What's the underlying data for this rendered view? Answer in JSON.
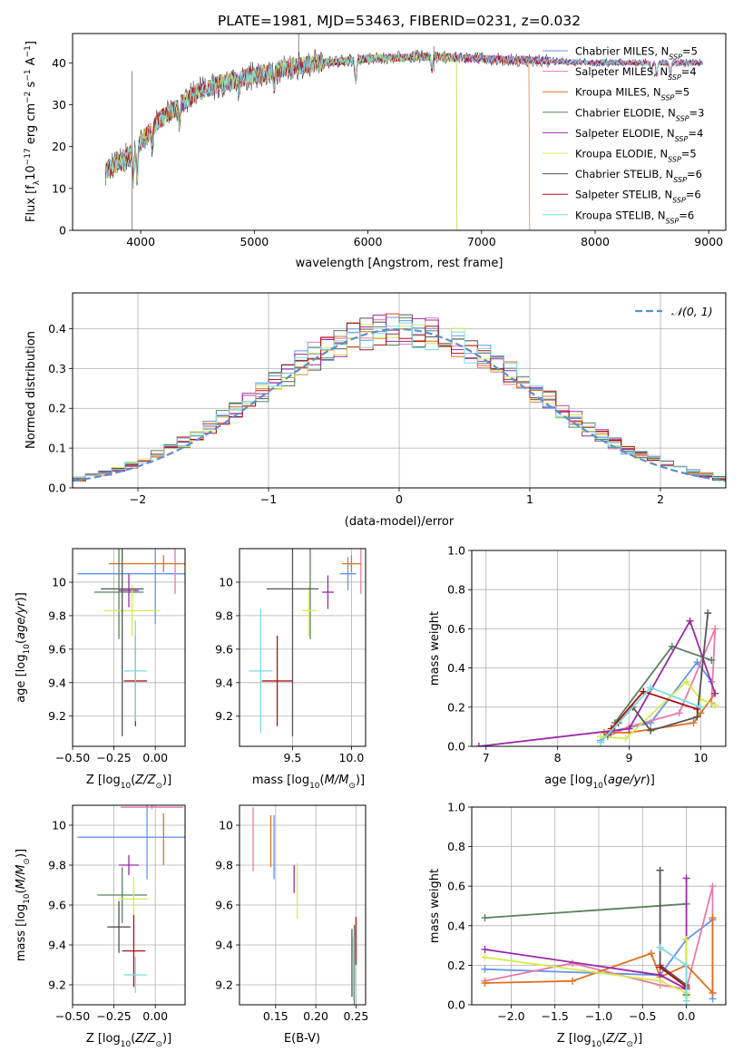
{
  "figure_title": "PLATE=1981, MJD=53463, FIBERID=0231, z=0.032",
  "colors": {
    "Chabrier MILES": "#6495ed",
    "Salpeter MILES": "#e87aa8",
    "Kroupa MILES": "#e07020",
    "Chabrier ELODIE": "#5a8060",
    "Salpeter ELODIE": "#9a2aa8",
    "Kroupa ELODIE": "#d4ec50",
    "Chabrier STELIB": "#555555",
    "Salpeter STELIB": "#b01010",
    "Kroupa STELIB": "#7adbe0"
  },
  "legend_main": [
    {
      "model": "Chabrier MILES",
      "nssp": "5"
    },
    {
      "model": "Salpeter MILES",
      "nssp": "4"
    },
    {
      "model": "Kroupa MILES",
      "nssp": "5"
    },
    {
      "model": "Chabrier ELODIE",
      "nssp": "3"
    },
    {
      "model": "Salpeter ELODIE",
      "nssp": "4"
    },
    {
      "model": "Kroupa ELODIE",
      "nssp": "5"
    },
    {
      "model": "Chabrier STELIB",
      "nssp": "6"
    },
    {
      "model": "Salpeter STELIB",
      "nssp": "6"
    },
    {
      "model": "Kroupa STELIB",
      "nssp": "6"
    }
  ],
  "chart_data": [
    {
      "id": "spectrum",
      "type": "line",
      "xlabel": "wavelength [Angstrom, rest frame]",
      "xlim": [
        3400,
        9150
      ],
      "ylim": [
        0,
        47
      ],
      "xticks": [
        4000,
        5000,
        6000,
        7000,
        8000,
        9000
      ],
      "yticks": [
        0,
        10,
        20,
        30,
        40
      ],
      "continuum": {
        "x": [
          3680,
          3850,
          4000,
          4150,
          4300,
          4500,
          4700,
          5000,
          5300,
          5600,
          6000,
          6500,
          7000,
          7500,
          8000,
          8500,
          8950
        ],
        "y": [
          14,
          17,
          21,
          26,
          29,
          33,
          35,
          37,
          39,
          40,
          41,
          41.5,
          41,
          40.5,
          40,
          40,
          40
        ]
      },
      "series_end_x": [
        8950,
        8950,
        7420,
        6780,
        8950,
        6780,
        8950,
        8950,
        8950
      ]
    },
    {
      "id": "residuals",
      "type": "step",
      "xlabel": "(data-model)/error",
      "ylabel": "Normed distribution",
      "xlim": [
        -2.5,
        2.5
      ],
      "ylim": [
        0,
        0.49
      ],
      "xticks": [
        -2,
        -1,
        0,
        1,
        2
      ],
      "xtick_labels": [
        "−2",
        "−1",
        "0",
        "1",
        "2"
      ],
      "yticks": [
        0,
        0.1,
        0.2,
        0.3,
        0.4
      ],
      "ytick_labels": [
        "0.0",
        "0.1",
        "0.2",
        "0.3",
        "0.4"
      ],
      "bin_width": 0.1,
      "reference_legend": "𝒩(0, 1)",
      "reference_sigma": 1
    },
    {
      "id": "age_vs_Z",
      "type": "errorbar",
      "xlabel": "Z [log10(Z/Z⊙)]",
      "ylabel": "age  [log10(age/yr)]",
      "xlim": [
        -0.5,
        0.18
      ],
      "ylim": [
        9.02,
        10.2
      ],
      "xticks": [
        -0.5,
        -0.25,
        0.0
      ],
      "xtick_labels": [
        "−0.50",
        "−0.25",
        "0.00"
      ],
      "yticks": [
        9.2,
        9.4,
        9.6,
        9.8,
        10.0
      ],
      "points": [
        {
          "x": -0.0,
          "xerr": 0.47,
          "y": 10.05,
          "yerr": 0.3
        },
        {
          "x": 0.12,
          "xerr": 0.0,
          "y": 10.11,
          "yerr": 0.18
        },
        {
          "x": 0.05,
          "xerr": 0.33,
          "y": 10.11,
          "yerr": 0.05
        },
        {
          "x": -0.22,
          "xerr": 0.15,
          "y": 9.94,
          "yerr": 0.28
        },
        {
          "x": -0.16,
          "xerr": 0.06,
          "y": 9.95,
          "yerr": 0.1
        },
        {
          "x": -0.14,
          "xerr": 0.17,
          "y": 9.83,
          "yerr": 0.15
        },
        {
          "x": -0.2,
          "xerr": 0.13,
          "y": 9.96,
          "yerr": 0.88
        },
        {
          "x": -0.12,
          "xerr": 0.07,
          "y": 9.41,
          "yerr": 0.27
        },
        {
          "x": -0.12,
          "xerr": 0.07,
          "y": 9.47,
          "yerr": 0.3
        }
      ]
    },
    {
      "id": "age_vs_mass",
      "type": "errorbar",
      "xlabel": "mass [log10(M/M⊙)]",
      "xlim": [
        9.05,
        10.12
      ],
      "ylim": [
        9.02,
        10.2
      ],
      "xticks": [
        9.5,
        10.0
      ],
      "xtick_labels": [
        "9.5",
        "10.0"
      ],
      "yticks": [
        9.2,
        9.4,
        9.6,
        9.8,
        10.0
      ],
      "points": [
        {
          "x": 9.97,
          "xerr": 0.07,
          "y": 10.05,
          "yerr": 0.1
        },
        {
          "x": 10.08,
          "xerr": 0.0,
          "y": 10.11,
          "yerr": 0.18
        },
        {
          "x": 10.0,
          "xerr": 0.08,
          "y": 10.11,
          "yerr": 0.05
        },
        {
          "x": 9.65,
          "xerr": 0.0,
          "y": 9.94,
          "yerr": 0.28
        },
        {
          "x": 9.8,
          "xerr": 0.05,
          "y": 9.94,
          "yerr": 0.1
        },
        {
          "x": 9.64,
          "xerr": 0.06,
          "y": 9.83,
          "yerr": 0.15
        },
        {
          "x": 9.5,
          "xerr": 0.22,
          "y": 9.96,
          "yerr": 0.88
        },
        {
          "x": 9.37,
          "xerr": 0.13,
          "y": 9.41,
          "yerr": 0.27
        },
        {
          "x": 9.23,
          "xerr": 0.1,
          "y": 9.47,
          "yerr": 0.37
        }
      ]
    },
    {
      "id": "mass_weight_vs_age",
      "type": "line",
      "xlabel": "age  [log10(age/yr)]",
      "ylabel": "mass weight",
      "xlim": [
        6.8,
        10.35
      ],
      "ylim": [
        0,
        1.0
      ],
      "xticks": [
        7,
        8,
        9,
        10
      ],
      "yticks": [
        0,
        0.2,
        0.4,
        0.6,
        0.8,
        1.0
      ],
      "ytick_labels": [
        "0.0",
        "0.2",
        "0.4",
        "0.6",
        "0.8",
        "1.0"
      ],
      "series": [
        {
          "x": [
            8.6,
            8.8,
            9.3,
            9.95,
            10.15
          ],
          "y": [
            0.03,
            0.08,
            0.12,
            0.43,
            0.33
          ]
        },
        {
          "x": [
            8.7,
            9.0,
            9.7,
            10.2,
            10.15
          ],
          "y": [
            0.05,
            0.1,
            0.17,
            0.6,
            0.22
          ]
        },
        {
          "x": [
            8.65,
            9.0,
            9.9,
            10.2,
            10.0
          ],
          "y": [
            0.07,
            0.07,
            0.12,
            0.27,
            0.17
          ]
        },
        {
          "x": [
            8.8,
            9.6,
            10.15
          ],
          "y": [
            0.12,
            0.51,
            0.44
          ]
        },
        {
          "x": [
            6.9,
            9.0,
            9.85,
            10.2
          ],
          "y": [
            0.0,
            0.09,
            0.64,
            0.27
          ]
        },
        {
          "x": [
            8.6,
            8.95,
            9.8,
            10.0,
            10.2
          ],
          "y": [
            0.05,
            0.04,
            0.33,
            0.24,
            0.21
          ]
        },
        {
          "x": [
            8.7,
            8.85,
            9.05,
            9.3,
            9.95,
            10.1
          ],
          "y": [
            0.06,
            0.12,
            0.2,
            0.08,
            0.15,
            0.68
          ]
        },
        {
          "x": [
            8.75,
            9.2,
            9.95
          ],
          "y": [
            0.09,
            0.28,
            0.19
          ]
        },
        {
          "x": [
            8.6,
            9.3,
            10.0
          ],
          "y": [
            0.02,
            0.3,
            0.2
          ]
        }
      ]
    },
    {
      "id": "mass_vs_Z",
      "type": "errorbar",
      "xlabel": "Z [log10(Z/Z⊙)]",
      "ylabel": "mass [log10(M/M⊙)]",
      "xlim": [
        -0.5,
        0.18
      ],
      "ylim": [
        9.1,
        10.1
      ],
      "xticks": [
        -0.5,
        -0.25,
        0.0
      ],
      "xtick_labels": [
        "−0.50",
        "−0.25",
        "0.00"
      ],
      "yticks": [
        9.2,
        9.4,
        9.6,
        9.8,
        10.0
      ],
      "points": [
        {
          "x": -0.05,
          "xerr": 0.42,
          "y": 9.94,
          "yerr": 0.21
        },
        {
          "x": -0.02,
          "xerr": 0.19,
          "y": 10.09,
          "yerr": 0.01
        },
        {
          "x": 0.05,
          "xerr": 0.0,
          "y": 9.93,
          "yerr": 0.13
        },
        {
          "x": -0.2,
          "xerr": 0.15,
          "y": 9.65,
          "yerr": 0.14
        },
        {
          "x": -0.16,
          "xerr": 0.06,
          "y": 9.8,
          "yerr": 0.05
        },
        {
          "x": -0.13,
          "xerr": 0.09,
          "y": 9.63,
          "yerr": 0.11
        },
        {
          "x": -0.22,
          "xerr": 0.07,
          "y": 9.49,
          "yerr": 0.13
        },
        {
          "x": -0.13,
          "xerr": 0.07,
          "y": 9.37,
          "yerr": 0.18
        },
        {
          "x": -0.12,
          "xerr": 0.07,
          "y": 9.25,
          "yerr": 0.09
        }
      ]
    },
    {
      "id": "mass_vs_ebv",
      "type": "errorbar",
      "xlabel": "E(B-V)",
      "xlim": [
        0.105,
        0.262
      ],
      "ylim": [
        9.1,
        10.1
      ],
      "xticks": [
        0.15,
        0.2,
        0.25
      ],
      "xtick_labels": [
        "0.15",
        "0.20",
        "0.25"
      ],
      "yticks": [
        9.2,
        9.4,
        9.6,
        9.8,
        10.0
      ],
      "points": [
        {
          "x": 0.148,
          "xerr": 0.0,
          "y": 9.89,
          "yerr": 0.16
        },
        {
          "x": 0.122,
          "xerr": 0.0,
          "y": 9.93,
          "yerr": 0.16
        },
        {
          "x": 0.144,
          "xerr": 0.0,
          "y": 9.92,
          "yerr": 0.13
        },
        {
          "x": 0.248,
          "xerr": 0.0,
          "y": 9.3,
          "yerr": 0.2
        },
        {
          "x": 0.173,
          "xerr": 0.0,
          "y": 9.73,
          "yerr": 0.07
        },
        {
          "x": 0.177,
          "xerr": 0.0,
          "y": 9.67,
          "yerr": 0.14
        },
        {
          "x": 0.245,
          "xerr": 0.0,
          "y": 9.31,
          "yerr": 0.17
        },
        {
          "x": 0.25,
          "xerr": 0.0,
          "y": 9.42,
          "yerr": 0.12
        },
        {
          "x": 0.247,
          "xerr": 0.0,
          "y": 9.28,
          "yerr": 0.16
        }
      ]
    },
    {
      "id": "mass_weight_vs_Z",
      "type": "line",
      "xlabel": "Z [log10(Z/Z⊙)]",
      "ylabel": "mass weight",
      "xlim": [
        -2.45,
        0.45
      ],
      "ylim": [
        0,
        1.0
      ],
      "xticks": [
        -2,
        -1.5,
        -1,
        -0.5,
        0
      ],
      "xtick_labels": [
        "−2.0",
        "−1.5",
        "−1.0",
        "−0.5",
        "0.0"
      ],
      "yticks": [
        0,
        0.2,
        0.4,
        0.6,
        0.8,
        1.0
      ],
      "ytick_labels": [
        "0.0",
        "0.2",
        "0.4",
        "0.6",
        "0.8",
        "1.0"
      ],
      "series": [
        {
          "x": [
            -2.3,
            -0.3,
            0.0,
            0.3,
            0.3
          ],
          "y": [
            0.18,
            0.15,
            0.33,
            0.43,
            0.03
          ]
        },
        {
          "x": [
            -2.3,
            -1.3,
            -0.3,
            0.0,
            0.3,
            0.3
          ],
          "y": [
            0.12,
            0.21,
            0.1,
            0.08,
            0.6,
            0.06
          ]
        },
        {
          "x": [
            -2.3,
            -1.3,
            -0.4,
            -0.3,
            0.0,
            0.3,
            0.3
          ],
          "y": [
            0.11,
            0.12,
            0.26,
            0.14,
            0.2,
            0.06,
            0.44
          ]
        },
        {
          "x": [
            -2.3,
            0.0
          ],
          "y": [
            0.44,
            0.51
          ]
        },
        {
          "x": [
            -2.3,
            -0.3,
            0.0,
            0.0
          ],
          "y": [
            0.28,
            0.15,
            0.08,
            0.64
          ]
        },
        {
          "x": [
            -2.3,
            -0.3,
            0.0,
            0.0,
            0.0
          ],
          "y": [
            0.24,
            0.12,
            0.06,
            0.33,
            0.04
          ]
        },
        {
          "x": [
            -0.3,
            -0.3,
            0.0,
            0.0
          ],
          "y": [
            0.68,
            0.2,
            0.1,
            0.05
          ]
        },
        {
          "x": [
            -0.3,
            0.0
          ],
          "y": [
            0.19,
            0.09
          ]
        },
        {
          "x": [
            -0.3,
            0.0,
            0.0
          ],
          "y": [
            0.29,
            0.2,
            0.02
          ]
        }
      ]
    }
  ]
}
